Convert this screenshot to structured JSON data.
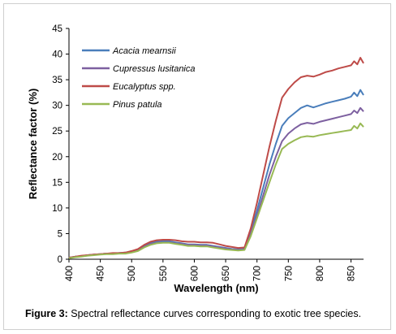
{
  "caption": {
    "label": "Figure 3:",
    "text": " Spectral reflectance curves corresponding to exotic tree species."
  },
  "chart_data": {
    "type": "line",
    "xlabel": "Wavelength (nm)",
    "ylabel": "Reflectance factor (%)",
    "xlim": [
      400,
      870
    ],
    "ylim": [
      0,
      45
    ],
    "xticks": [
      400,
      450,
      500,
      550,
      600,
      650,
      700,
      750,
      800,
      850
    ],
    "yticks": [
      0,
      5,
      10,
      15,
      20,
      25,
      30,
      35,
      40,
      45
    ],
    "grid": false,
    "legend_position": "top-left",
    "x": [
      400,
      410,
      420,
      430,
      440,
      450,
      460,
      470,
      480,
      490,
      500,
      510,
      520,
      530,
      540,
      550,
      560,
      570,
      580,
      590,
      600,
      610,
      620,
      630,
      640,
      650,
      660,
      670,
      680,
      690,
      700,
      710,
      720,
      730,
      740,
      750,
      760,
      770,
      780,
      790,
      800,
      810,
      820,
      830,
      840,
      850,
      855,
      860,
      865,
      870
    ],
    "series": [
      {
        "name": "Acacia mearnsii",
        "color": "#4a7ebb",
        "values": [
          0.3,
          0.5,
          0.6,
          0.8,
          0.9,
          1.0,
          1.1,
          1.1,
          1.2,
          1.3,
          1.5,
          1.9,
          2.6,
          3.2,
          3.4,
          3.5,
          3.5,
          3.3,
          3.1,
          2.9,
          2.9,
          2.8,
          2.8,
          2.6,
          2.4,
          2.2,
          2.0,
          1.9,
          2.0,
          5.5,
          9.5,
          14.0,
          18.5,
          22.5,
          26.0,
          27.5,
          28.5,
          29.5,
          30.0,
          29.6,
          30.0,
          30.4,
          30.7,
          31.0,
          31.3,
          31.7,
          32.5,
          31.8,
          33.0,
          32.0
        ]
      },
      {
        "name": "Cupressus lusitanica",
        "color": "#7d60a0",
        "values": [
          0.3,
          0.5,
          0.6,
          0.8,
          0.9,
          1.0,
          1.1,
          1.1,
          1.2,
          1.2,
          1.4,
          1.8,
          2.4,
          3.0,
          3.2,
          3.3,
          3.3,
          3.1,
          3.0,
          2.8,
          2.8,
          2.7,
          2.7,
          2.5,
          2.3,
          2.1,
          1.9,
          1.8,
          1.9,
          5.0,
          8.5,
          12.5,
          16.5,
          20.0,
          23.0,
          24.5,
          25.5,
          26.3,
          26.6,
          26.4,
          26.8,
          27.1,
          27.4,
          27.7,
          28.0,
          28.3,
          29.0,
          28.5,
          29.5,
          28.8
        ]
      },
      {
        "name": "Eucalyptus spp.",
        "color": "#be4b48",
        "values": [
          0.3,
          0.5,
          0.7,
          0.8,
          0.9,
          1.0,
          1.1,
          1.2,
          1.2,
          1.3,
          1.6,
          2.0,
          2.8,
          3.4,
          3.7,
          3.8,
          3.8,
          3.7,
          3.5,
          3.4,
          3.4,
          3.3,
          3.3,
          3.2,
          2.9,
          2.6,
          2.4,
          2.2,
          2.3,
          6.0,
          11.0,
          16.5,
          22.0,
          27.0,
          31.5,
          33.2,
          34.5,
          35.5,
          35.8,
          35.6,
          36.0,
          36.5,
          36.8,
          37.2,
          37.5,
          37.8,
          38.6,
          38.0,
          39.3,
          38.2
        ]
      },
      {
        "name": "Pinus patula",
        "color": "#98b954",
        "values": [
          0.2,
          0.4,
          0.5,
          0.7,
          0.8,
          0.9,
          1.0,
          1.0,
          1.1,
          1.1,
          1.3,
          1.6,
          2.3,
          2.8,
          3.1,
          3.2,
          3.2,
          3.0,
          2.8,
          2.6,
          2.6,
          2.5,
          2.5,
          2.3,
          2.1,
          1.9,
          1.8,
          1.7,
          1.8,
          4.5,
          8.0,
          11.5,
          15.0,
          18.5,
          21.5,
          22.5,
          23.2,
          23.8,
          24.0,
          23.9,
          24.2,
          24.4,
          24.6,
          24.8,
          25.0,
          25.2,
          26.0,
          25.5,
          26.5,
          25.8
        ]
      }
    ]
  }
}
